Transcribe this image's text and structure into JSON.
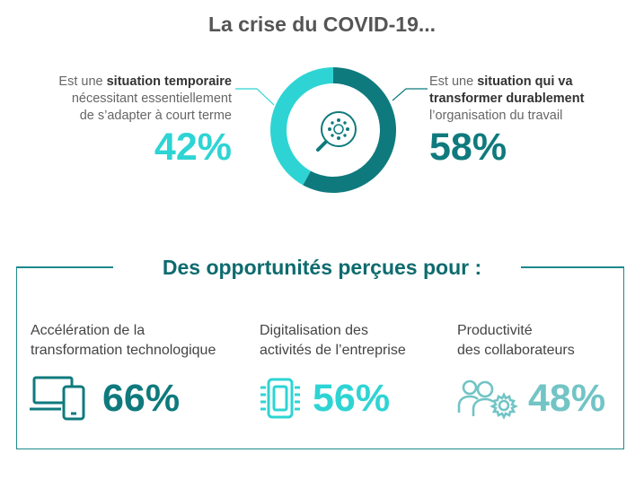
{
  "title": "La crise du COVID-19...",
  "colors": {
    "light": "#2ed4d4",
    "dark": "#0f7a7d",
    "mid": "#30bdbf",
    "soft": "#72c4c5",
    "title_gray": "#555555"
  },
  "chart_data": {
    "type": "pie",
    "categories": [
      "Est une situation temporaire nécessitant essentiellement de s'adapter à court terme",
      "Est une situation qui va transformer durablement l'organisation du travail"
    ],
    "values": [
      42,
      58
    ],
    "title": "La crise du COVID-19..."
  },
  "left": {
    "prefix": "Est une ",
    "bold": "situation temporaire",
    "line2": "nécessitant essentiellement",
    "line3": "de s’adapter à court terme",
    "pct": "42%"
  },
  "right": {
    "prefix": "Est une ",
    "bold1": "situation qui va",
    "bold2": "transformer durablement",
    "line3": "l’organisation du travail",
    "pct": "58%"
  },
  "center_icon": "virus-magnifier-icon",
  "opportunities": {
    "title": "Des opportunités perçues pour :",
    "items": [
      {
        "line1": "Accélération de la",
        "line2": "transformation technologique",
        "pct": "66%",
        "icon": "laptop-phone-icon",
        "color": "#0f7a7d"
      },
      {
        "line1": "Digitalisation des",
        "line2": "activités de l’entreprise",
        "pct": "56%",
        "icon": "chip-icon",
        "color": "#2ed4d4"
      },
      {
        "line1": "Productivité",
        "line2": "des collaborateurs",
        "pct": "48%",
        "icon": "people-gear-icon",
        "color": "#72c4c5"
      }
    ]
  }
}
